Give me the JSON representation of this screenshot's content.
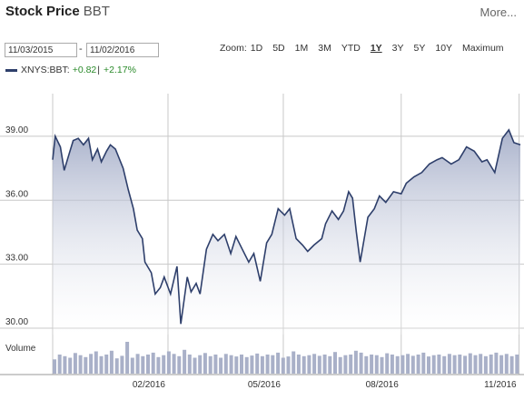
{
  "header": {
    "title": "Stock Price",
    "ticker": "BBT",
    "more_label": "More..."
  },
  "range": {
    "from": "11/03/2015",
    "to": "11/02/2016",
    "separator": "-"
  },
  "zoom": {
    "label": "Zoom:",
    "options": [
      "1D",
      "5D",
      "1M",
      "3M",
      "YTD",
      "1Y",
      "3Y",
      "5Y",
      "10Y",
      "Maximum"
    ],
    "active": "1Y"
  },
  "legend": {
    "name": "XNYS:BBT:",
    "change": "+0.82",
    "separator": "|",
    "percent": "+2.17%",
    "color": "#2e3f6b"
  },
  "volume_label": "Volume",
  "chart_data": {
    "type": "area",
    "yticks": [
      "39.00",
      "36.00",
      "33.00",
      "30.00"
    ],
    "ylim": [
      29.7,
      41.0
    ],
    "xticks": [
      "02/2016",
      "05/2016",
      "08/2016",
      "11/2016"
    ],
    "xlim": [
      "2015-11-03",
      "2016-11-02"
    ],
    "line_color": "#2e3f6b",
    "fill_color": "#b8bfd4",
    "series": [
      {
        "x": [
          "2015-11-03",
          "2015-11-05",
          "2015-11-09",
          "2015-11-12",
          "2015-11-16",
          "2015-11-19",
          "2015-11-23",
          "2015-11-27",
          "2015-12-01",
          "2015-12-04",
          "2015-12-08",
          "2015-12-11",
          "2015-12-15",
          "2015-12-18",
          "2015-12-22",
          "2015-12-28",
          "2016-01-01",
          "2016-01-05",
          "2016-01-08",
          "2016-01-12",
          "2016-01-14",
          "2016-01-19",
          "2016-01-22",
          "2016-01-26",
          "2016-01-29",
          "2016-02-03",
          "2016-02-08",
          "2016-02-11",
          "2016-02-16",
          "2016-02-19",
          "2016-02-23",
          "2016-02-26",
          "2016-03-02",
          "2016-03-07",
          "2016-03-11",
          "2016-03-16",
          "2016-03-21",
          "2016-03-25",
          "2016-03-30",
          "2016-04-04",
          "2016-04-08",
          "2016-04-13",
          "2016-04-18",
          "2016-04-22",
          "2016-04-27",
          "2016-05-02",
          "2016-05-06",
          "2016-05-11",
          "2016-05-16",
          "2016-05-20",
          "2016-05-25",
          "2016-05-31",
          "2016-06-03",
          "2016-06-08",
          "2016-06-13",
          "2016-06-17",
          "2016-06-21",
          "2016-06-24",
          "2016-06-27",
          "2016-06-30",
          "2016-07-06",
          "2016-07-11",
          "2016-07-15",
          "2016-07-20",
          "2016-07-26",
          "2016-08-01",
          "2016-08-05",
          "2016-08-11",
          "2016-08-17",
          "2016-08-23",
          "2016-08-29",
          "2016-09-02",
          "2016-09-09",
          "2016-09-15",
          "2016-09-21",
          "2016-09-27",
          "2016-10-03",
          "2016-10-07",
          "2016-10-13",
          "2016-10-19",
          "2016-10-24",
          "2016-10-28",
          "2016-11-02"
        ],
        "values": [
          37.9,
          39.0,
          38.5,
          37.4,
          38.2,
          38.8,
          38.9,
          38.6,
          38.9,
          37.9,
          38.4,
          37.8,
          38.3,
          38.6,
          38.4,
          37.5,
          36.5,
          35.6,
          34.6,
          34.2,
          33.1,
          32.6,
          31.6,
          31.9,
          32.4,
          31.6,
          32.9,
          30.2,
          32.4,
          31.7,
          32.1,
          31.6,
          33.7,
          34.4,
          34.1,
          34.4,
          33.5,
          34.3,
          33.7,
          33.1,
          33.5,
          32.2,
          34.0,
          34.4,
          35.6,
          35.3,
          35.6,
          34.2,
          33.9,
          33.6,
          33.9,
          34.2,
          34.9,
          35.5,
          35.1,
          35.5,
          36.4,
          36.1,
          34.5,
          33.1,
          35.2,
          35.6,
          36.2,
          35.9,
          36.4,
          36.3,
          36.8,
          37.1,
          37.3,
          37.7,
          37.9,
          38.0,
          37.7,
          37.9,
          38.5,
          38.3,
          37.8,
          37.9,
          37.3,
          38.9,
          39.3,
          38.7,
          38.6
        ]
      }
    ],
    "volume": {
      "values": [
        0.45,
        0.6,
        0.55,
        0.5,
        0.65,
        0.58,
        0.52,
        0.62,
        0.7,
        0.55,
        0.6,
        0.72,
        0.48,
        0.56,
        1.0,
        0.5,
        0.62,
        0.55,
        0.6,
        0.66,
        0.52,
        0.58,
        0.7,
        0.62,
        0.55,
        0.75,
        0.6,
        0.5,
        0.58,
        0.65,
        0.55,
        0.6,
        0.5,
        0.62,
        0.58,
        0.54,
        0.6,
        0.52,
        0.57,
        0.63,
        0.55,
        0.6,
        0.58,
        0.66,
        0.5,
        0.54,
        0.7,
        0.6,
        0.55,
        0.58,
        0.62,
        0.56,
        0.6,
        0.55,
        0.68,
        0.52,
        0.58,
        0.6,
        0.72,
        0.66,
        0.55,
        0.6,
        0.58,
        0.52,
        0.64,
        0.6,
        0.55,
        0.58,
        0.62,
        0.56,
        0.6,
        0.66,
        0.54,
        0.58,
        0.6,
        0.55,
        0.62,
        0.58,
        0.6,
        0.56,
        0.64,
        0.58,
        0.62,
        0.55,
        0.6,
        0.66,
        0.58,
        0.62,
        0.55,
        0.6
      ]
    }
  }
}
